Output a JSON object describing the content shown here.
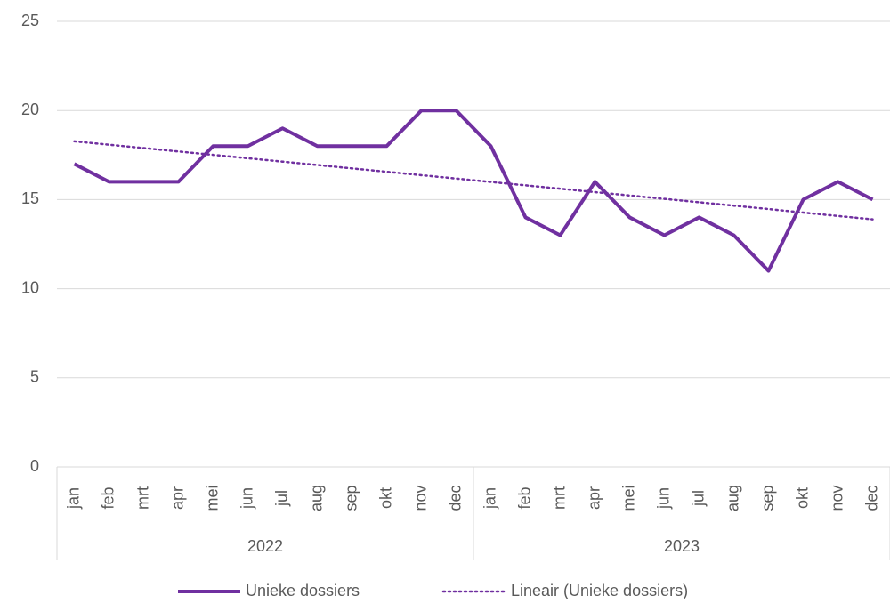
{
  "chart_data": {
    "type": "line",
    "groups": [
      {
        "label": "2022",
        "categories": [
          "jan",
          "feb",
          "mrt",
          "apr",
          "mei",
          "jun",
          "jul",
          "aug",
          "sep",
          "okt",
          "nov",
          "dec"
        ]
      },
      {
        "label": "2023",
        "categories": [
          "jan",
          "feb",
          "mrt",
          "apr",
          "mei",
          "jun",
          "jul",
          "aug",
          "sep",
          "okt",
          "nov",
          "dec"
        ]
      }
    ],
    "series": [
      {
        "name": "Unieke dossiers",
        "color": "#7030a0",
        "dash": "solid",
        "values": [
          17,
          16,
          16,
          16,
          18,
          18,
          19,
          18,
          18,
          18,
          20,
          20,
          18,
          14,
          13,
          16,
          14,
          13,
          14,
          13,
          11,
          15,
          16,
          15
        ]
      },
      {
        "name": "Lineair (Unieke dossiers)",
        "color": "#7030a0",
        "dash": "dotted",
        "values": [
          18.27,
          18.08,
          17.89,
          17.7,
          17.51,
          17.32,
          17.13,
          16.94,
          16.75,
          16.56,
          16.37,
          16.18,
          15.99,
          15.8,
          15.61,
          15.42,
          15.23,
          15.04,
          14.85,
          14.66,
          14.47,
          14.27,
          14.08,
          13.89
        ]
      }
    ],
    "ylim": [
      0,
      25
    ],
    "yticks": [
      0,
      5,
      10,
      15,
      20,
      25
    ],
    "grid": true,
    "legend": "bottom"
  }
}
